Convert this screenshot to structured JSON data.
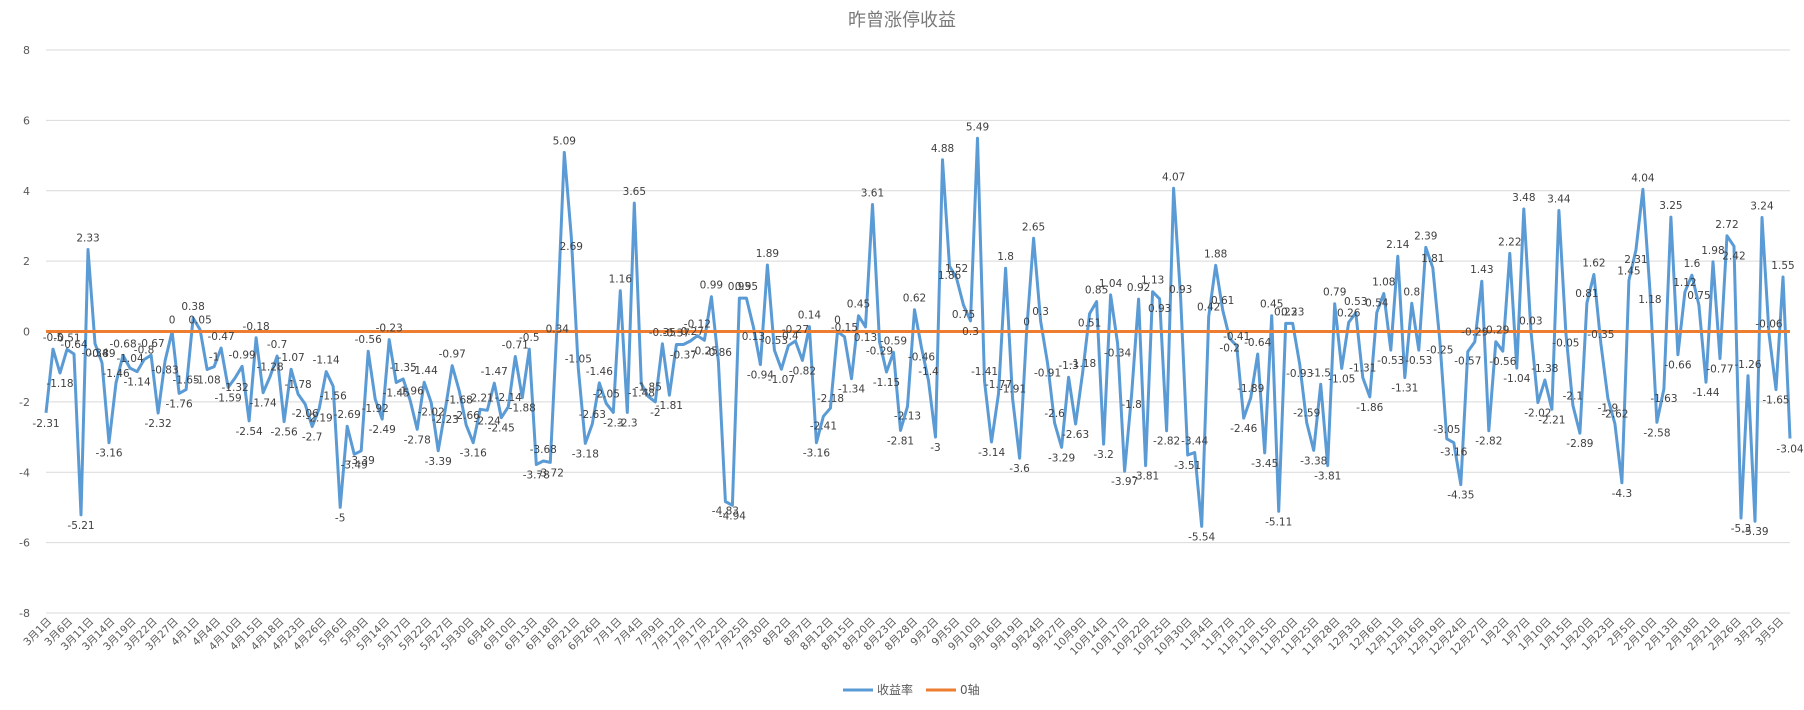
{
  "chart_data": {
    "type": "line",
    "title": "昨曾涨停收益",
    "xlabel": "",
    "ylabel": "",
    "ylim": [
      -8,
      8
    ],
    "yticks": [
      -8,
      -6,
      -4,
      -2,
      0,
      2,
      4,
      6,
      8
    ],
    "grid": true,
    "legend_position": "bottom",
    "x_tick_labels": [
      "3月1日",
      "3月6日",
      "3月11日",
      "3月14日",
      "3月19日",
      "3月22日",
      "3月27日",
      "4月1日",
      "4月4日",
      "4月10日",
      "4月15日",
      "4月18日",
      "4月23日",
      "4月26日",
      "5月6日",
      "5月9日",
      "5月14日",
      "5月17日",
      "5月22日",
      "5月27日",
      "5月30日",
      "6月4日",
      "6月10日",
      "6月13日",
      "6月18日",
      "6月21日",
      "6月26日",
      "7月1日",
      "7月4日",
      "7月9日",
      "7月12日",
      "7月17日",
      "7月22日",
      "7月25日",
      "7月30日",
      "8月2日",
      "8月7日",
      "8月12日",
      "8月15日",
      "8月20日",
      "8月23日",
      "8月28日",
      "9月2日",
      "9月5日",
      "9月10日",
      "9月16日",
      "9月19日",
      "9月24日",
      "9月27日",
      "10月9日",
      "10月14日",
      "10月17日",
      "10月22日",
      "10月25日",
      "10月30日",
      "11月4日",
      "11月7日",
      "11月12日",
      "11月15日",
      "11月20日",
      "11月25日",
      "11月28日",
      "12月3日",
      "12月6日",
      "12月11日",
      "12月16日",
      "12月19日",
      "12月24日",
      "12月27日",
      "1月2日",
      "1月7日",
      "1月10日",
      "1月15日",
      "1月20日",
      "1月23日",
      "2月5日",
      "2月10日",
      "2月13日",
      "2月18日",
      "2月21日",
      "2月26日",
      "3月2日",
      "3月5日"
    ],
    "series": [
      {
        "name": "收益率",
        "color": "#5b9bd5",
        "values": [
          -2.31,
          -0.5,
          -1.18,
          -0.51,
          -0.64,
          -5.21,
          2.33,
          -0.34,
          -0.89,
          -3.16,
          -1.46,
          -0.68,
          -1.04,
          -1.14,
          -0.8,
          -0.67,
          -2.32,
          -0.83,
          0,
          -1.76,
          -1.65,
          0.38,
          0.05,
          -1.08,
          -1.0,
          -0.47,
          -1.59,
          -1.32,
          -0.99,
          -2.54,
          -0.18,
          -1.74,
          -1.28,
          -0.7,
          -2.56,
          -1.07,
          -1.78,
          -2.06,
          -2.7,
          -2.19,
          -1.14,
          -1.56,
          -5,
          -2.69,
          -3.49,
          -3.39,
          -0.56,
          -1.92,
          -2.49,
          -0.23,
          -1.45,
          -1.35,
          -1.96,
          -2.78,
          -1.44,
          -2.02,
          -3.39,
          -2.23,
          -0.97,
          -1.68,
          -2.66,
          -3.16,
          -2.21,
          -2.24,
          -1.47,
          -2.45,
          -2.14,
          -0.71,
          -1.88,
          -0.5,
          -3.78,
          -3.68,
          -3.72,
          0.34,
          5.09,
          2.69,
          -1.05,
          -3.18,
          -2.63,
          -1.46,
          -2.05,
          -2.3,
          1.16,
          -2.3,
          3.65,
          -1.48,
          -1.85,
          -2.0,
          -0.35,
          -1.81,
          -0.37,
          -0.37,
          -0.27,
          -0.12,
          -0.25,
          0.99,
          -0.86,
          -4.83,
          -4.94,
          0.95,
          0.95,
          0.13,
          -0.94,
          1.89,
          -0.53,
          -1.07,
          -0.4,
          -0.27,
          -0.82,
          0.14,
          -3.16,
          -2.41,
          -2.18,
          0,
          -0.15,
          -1.34,
          0.45,
          0.13,
          3.61,
          -0.29,
          -1.15,
          -0.59,
          -2.81,
          -2.13,
          0.62,
          -0.46,
          -1.4,
          -3,
          4.88,
          1.86,
          1.52,
          0.75,
          0.3,
          5.49,
          -1.41,
          -3.14,
          -1.77,
          1.8,
          -1.91,
          -3.6,
          0,
          2.65,
          0.3,
          -0.91,
          -2.6,
          -3.29,
          -1.3,
          -2.63,
          -1.18,
          0.51,
          0.85,
          -3.2,
          1.04,
          -0.34,
          -3.97,
          -1.8,
          0.92,
          -3.81,
          1.13,
          0.93,
          -2.82,
          4.07,
          0.93,
          -3.51,
          -3.44,
          -5.54,
          0.42,
          1.88,
          0.61,
          -0.2,
          -0.41,
          -2.46,
          -1.89,
          -0.64,
          -3.45,
          0.45,
          -5.11,
          0.23,
          0.23,
          -0.93,
          -2.59,
          -3.38,
          -1.5,
          -3.81,
          0.79,
          -1.05,
          0.26,
          0.53,
          -1.31,
          -1.86,
          0.54,
          1.08,
          -0.53,
          2.14,
          -1.31,
          0.8,
          -0.53,
          2.39,
          1.81,
          -0.25,
          -3.05,
          -3.16,
          -4.35,
          -0.57,
          -0.29,
          1.43,
          -2.82,
          -0.29,
          -0.56,
          2.22,
          -1.04,
          3.48,
          0.03,
          -2.02,
          -1.38,
          -2.21,
          3.44,
          -0.05,
          -2.1,
          -2.89,
          0.81,
          1.62,
          -0.35,
          -1.9,
          -2.62,
          -4.3,
          1.45,
          2.31,
          4.04,
          1.18,
          -2.58,
          -1.63,
          3.25,
          -0.66,
          1.12,
          1.6,
          0.75,
          -1.44,
          1.98,
          -0.77,
          2.72,
          2.42,
          -5.3,
          -1.26,
          -5.39,
          3.24,
          -0.06,
          -1.65,
          1.55,
          -3.04
        ]
      },
      {
        "name": "0轴",
        "color": "#ed7d31",
        "values": [
          0
        ]
      }
    ]
  }
}
